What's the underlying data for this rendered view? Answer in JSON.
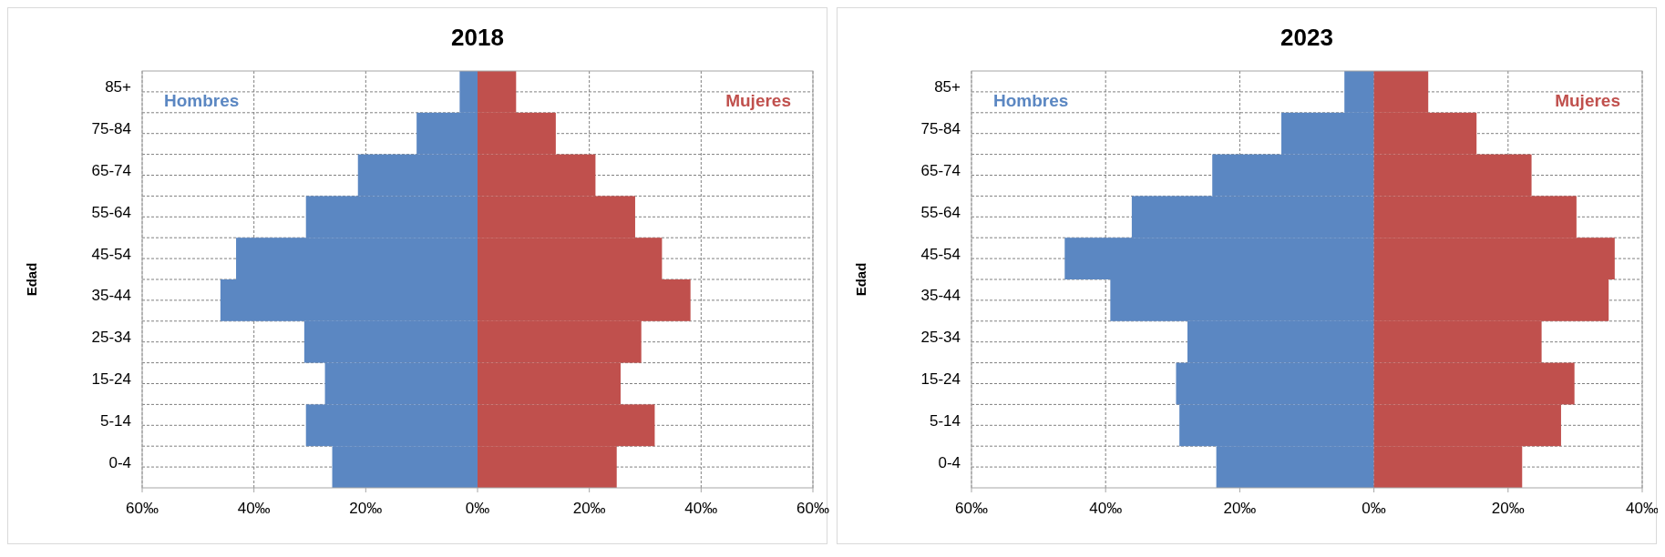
{
  "chart_data": [
    {
      "type": "bar",
      "title": "2018",
      "ylabel": "Edad",
      "orientation": "horizontal",
      "stacked": true,
      "categories": [
        "85+",
        "75-84",
        "65-74",
        "55-64",
        "45-54",
        "35-44",
        "25-34",
        "15-24",
        "5-14",
        "0-4"
      ],
      "series": [
        {
          "name": "Hombres",
          "color": "#5b87c2",
          "values": [
            -3.2,
            -10.9,
            -21.4,
            -30.7,
            -43.2,
            -46.0,
            -31.0,
            -27.3,
            -30.7,
            -26.0
          ]
        },
        {
          "name": "Mujeres",
          "color": "#c0504d",
          "values": [
            6.9,
            14.0,
            21.1,
            28.2,
            33.0,
            38.1,
            29.3,
            25.6,
            31.7,
            24.9
          ]
        }
      ],
      "xlim": [
        -60,
        60
      ],
      "xticks": [
        {
          "value": -60,
          "label": "60‰"
        },
        {
          "value": -40,
          "label": "40‰"
        },
        {
          "value": -20,
          "label": "20‰"
        },
        {
          "value": 0,
          "label": "0‰"
        },
        {
          "value": 20,
          "label": "20‰"
        },
        {
          "value": 40,
          "label": "40‰"
        },
        {
          "value": 60,
          "label": "60‰"
        }
      ],
      "grid": true
    },
    {
      "type": "bar",
      "title": "2023",
      "ylabel": "Edad",
      "orientation": "horizontal",
      "stacked": true,
      "categories": [
        "85+",
        "75-84",
        "65-74",
        "55-64",
        "45-54",
        "35-44",
        "25-34",
        "15-24",
        "5-14",
        "0-4"
      ],
      "series": [
        {
          "name": "Hombres",
          "color": "#5b87c2",
          "values": [
            -4.4,
            -13.8,
            -24.1,
            -36.1,
            -46.1,
            -39.3,
            -27.8,
            -29.5,
            -29.0,
            -23.5
          ]
        },
        {
          "name": "Mujeres",
          "color": "#c0504d",
          "values": [
            8.1,
            15.3,
            23.5,
            30.2,
            35.9,
            35.0,
            25.0,
            29.9,
            27.9,
            22.1
          ]
        }
      ],
      "xlim": [
        -60,
        40
      ],
      "xticks": [
        {
          "value": -60,
          "label": "60‰"
        },
        {
          "value": -40,
          "label": "40‰"
        },
        {
          "value": -20,
          "label": "20‰"
        },
        {
          "value": 0,
          "label": "0‰"
        },
        {
          "value": 20,
          "label": "20‰"
        },
        {
          "value": 40,
          "label": "40‰"
        }
      ],
      "grid": true
    }
  ]
}
